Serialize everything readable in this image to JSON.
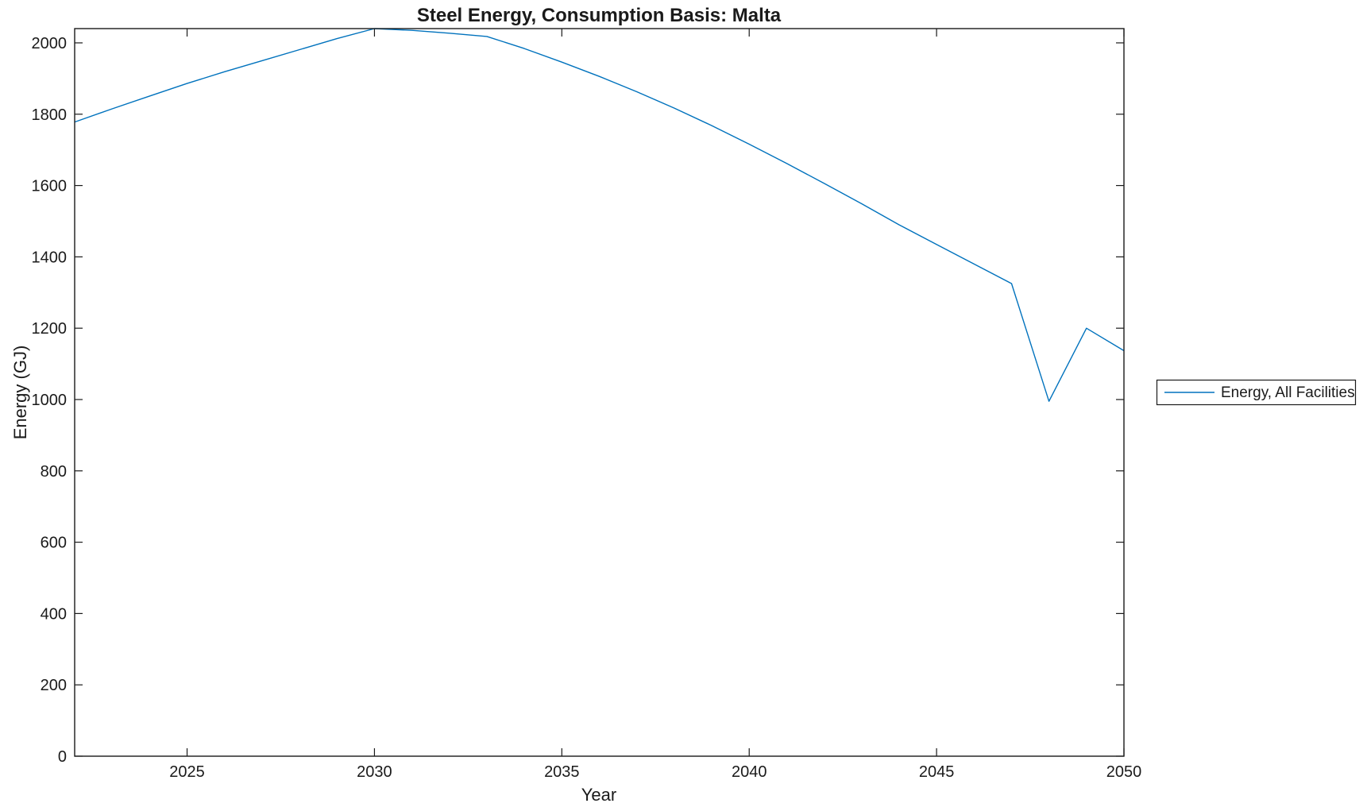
{
  "figure": {
    "background": "#ffffff",
    "axis_color": "#1a1a1a",
    "line_color": "#0072BD"
  },
  "chart_data": {
    "type": "line",
    "title": "Steel Energy, Consumption Basis: Malta",
    "xlabel": "Year",
    "ylabel": "Energy (GJ)",
    "xlim": [
      2022,
      2050
    ],
    "ylim": [
      0,
      2040
    ],
    "x_ticks": [
      2025,
      2030,
      2035,
      2040,
      2045,
      2050
    ],
    "y_ticks": [
      0,
      200,
      400,
      600,
      800,
      1000,
      1200,
      1400,
      1600,
      1800,
      2000
    ],
    "grid": false,
    "legend_position": "right-outside",
    "x": [
      2022,
      2023,
      2024,
      2025,
      2026,
      2027,
      2028,
      2029,
      2030,
      2031,
      2032,
      2033,
      2034,
      2035,
      2036,
      2037,
      2038,
      2039,
      2040,
      2041,
      2042,
      2043,
      2044,
      2045,
      2046,
      2047,
      2048,
      2049,
      2050
    ],
    "series": [
      {
        "name": "Energy, All Facilities",
        "color": "#0072BD",
        "values": [
          1778,
          1815,
          1851,
          1886,
          1919,
          1950,
          1981,
          2012,
          2040,
          2035,
          2027,
          2018,
          1984,
          1946,
          1906,
          1863,
          1817,
          1768,
          1716,
          1662,
          1606,
          1549,
          1490,
          1435,
          1380,
          1325,
          995,
          1200,
          1137
        ]
      }
    ]
  }
}
